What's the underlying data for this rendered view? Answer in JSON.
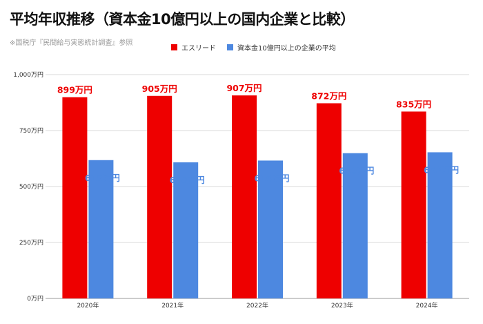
{
  "title": "平均年収推移（資本金10億円以上の国内企業と比較）",
  "source": "※国税庁『民間給与実態統計調査』参照",
  "colors": {
    "series_1": "#ee0000",
    "series_2": "#4d88e0",
    "grid": "#d9d9d9",
    "axis_text": "#333333"
  },
  "chart_data": {
    "type": "bar",
    "categories": [
      "2020年",
      "2021年",
      "2022年",
      "2023年",
      "2024年"
    ],
    "series": [
      {
        "name": "エスリード",
        "values": [
          899,
          905,
          907,
          872,
          835
        ],
        "data_labels": [
          "899万円",
          "905万円",
          "907万円",
          "872万円",
          "835万円"
        ]
      },
      {
        "name": "資本金10億円以上の企業の平均",
        "values": [
          618,
          608,
          616,
          649,
          653
        ],
        "data_labels": [
          "618万円",
          "608万円",
          "616万円",
          "649万円",
          "653万円"
        ]
      }
    ],
    "ylim": [
      0,
      1000
    ],
    "yticks": [
      0,
      250,
      500,
      750,
      1000
    ],
    "ytick_labels": [
      "0万円",
      "250万円",
      "500万円",
      "750万円",
      "1,000万円"
    ],
    "grid": true,
    "legend_position": "top"
  }
}
